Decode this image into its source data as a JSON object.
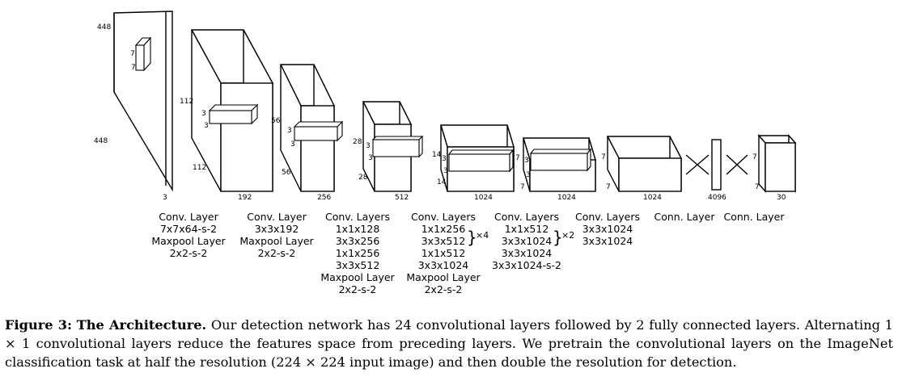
{
  "blocks": [
    {
      "dims": {
        "top": "448",
        "side": "448",
        "depth": "3",
        "kernel_h": "7",
        "kernel_w": "7"
      },
      "layers": [
        "Conv. Layer",
        "7x7x64-s-2",
        "Maxpool Layer",
        "2x2-s-2"
      ]
    },
    {
      "dims": {
        "top": "112",
        "side": "112",
        "depth": "192",
        "kernel_h": "3",
        "kernel_w": "3"
      },
      "layers": [
        "Conv. Layer",
        "3x3x192",
        "Maxpool Layer",
        "2x2-s-2"
      ]
    },
    {
      "dims": {
        "top": "56",
        "side": "56",
        "depth": "256",
        "kernel_h": "3",
        "kernel_w": "3"
      },
      "layers": [
        "Conv. Layers",
        "1x1x128",
        "3x3x256",
        "1x1x256",
        "3x3x512",
        "Maxpool Layer",
        "2x2-s-2"
      ]
    },
    {
      "dims": {
        "top": "28",
        "side": "28",
        "depth": "512",
        "kernel_h": "3",
        "kernel_w": "3"
      },
      "layers": [
        "Conv. Layers",
        "1x1x256",
        "3x3x512",
        "1x1x512",
        "3x3x1024",
        "Maxpool Layer",
        "2x2-s-2"
      ],
      "repeat": "×4"
    },
    {
      "dims": {
        "top": "14",
        "side": "14",
        "depth": "1024",
        "kernel_h": "3",
        "kernel_w": "3"
      },
      "layers": [
        "Conv. Layers",
        "1x1x512",
        "3x3x1024",
        "3x3x1024",
        "3x3x1024-s-2"
      ],
      "repeat": "×2"
    },
    {
      "dims": {
        "top": "7",
        "side": "7",
        "depth": "1024",
        "kernel_h": "3",
        "kernel_w": "3"
      },
      "layers": [
        "Conv. Layers",
        "3x3x1024",
        "3x3x1024"
      ]
    },
    {
      "dims": {
        "top": "7",
        "side": "7",
        "depth": "1024"
      },
      "layers": [
        "Conn. Layer"
      ]
    },
    {
      "dims": {
        "depth": "4096"
      },
      "layers": [
        "Conn. Layer"
      ]
    },
    {
      "dims": {
        "top": "7",
        "side": "7",
        "depth": "30"
      },
      "layers": []
    }
  ],
  "caption": {
    "label": "Figure 3:",
    "title": "The Architecture.",
    "text": "Our detection network has 24 convolutional layers followed by 2 fully connected layers. Alternating 1 × 1 convolutional layers reduce the features space from preceding layers. We pretrain the convolutional layers on the ImageNet classification task at half the resolution (224 × 224 input image) and then double the resolution for detection."
  }
}
